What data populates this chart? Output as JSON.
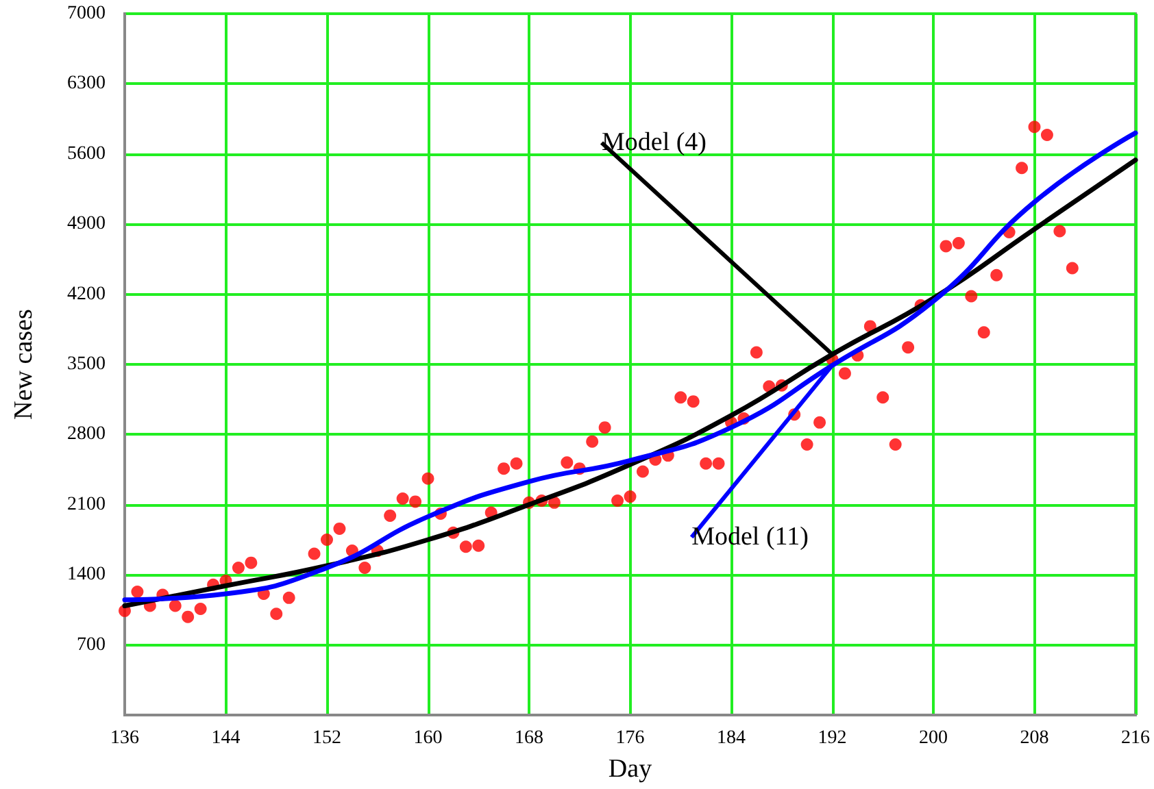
{
  "chart_data": {
    "type": "scatter",
    "xlabel": "Day",
    "ylabel": "New cases",
    "xlim": [
      136,
      216
    ],
    "xticks": [
      136,
      144,
      152,
      160,
      168,
      176,
      184,
      192,
      200,
      208,
      216
    ],
    "ylim": [
      0,
      7000
    ],
    "yticks": [
      700,
      1400,
      2100,
      2800,
      3500,
      4200,
      4900,
      5600,
      6300,
      7000
    ],
    "grid": true,
    "legend": false,
    "series": [
      {
        "color": "#ff0000",
        "marker": "circle",
        "x": [
          136,
          137,
          138,
          139,
          140,
          141,
          142,
          143,
          144,
          145,
          146,
          147,
          148,
          149,
          151,
          152,
          153,
          154,
          155,
          156,
          157,
          158,
          159,
          160,
          161,
          162,
          163,
          164,
          165,
          166,
          167,
          168,
          169,
          170,
          171,
          172,
          173,
          174,
          175,
          176,
          177,
          178,
          179,
          180,
          181,
          182,
          183,
          184,
          185,
          186,
          187,
          188,
          189,
          190,
          191,
          192,
          193,
          194,
          195,
          196,
          197,
          198,
          199,
          201,
          202,
          203,
          204,
          205,
          206,
          207,
          208,
          209,
          210,
          211
        ],
        "values": [
          1040,
          1230,
          1090,
          1200,
          1090,
          980,
          1060,
          1300,
          1340,
          1470,
          1520,
          1210,
          1010,
          1170,
          1610,
          1750,
          1860,
          1640,
          1470,
          1640,
          1990,
          2160,
          2130,
          2360,
          2010,
          1820,
          1680,
          1690,
          2020,
          2460,
          2510,
          2120,
          2140,
          2120,
          2520,
          2460,
          2730,
          2870,
          2140,
          2180,
          2430,
          2550,
          2590,
          3170,
          3130,
          2510,
          2510,
          2920,
          2960,
          3620,
          3280,
          3290,
          3000,
          2700,
          2920,
          3550,
          3410,
          3590,
          3880,
          3170,
          2700,
          3670,
          4090,
          4680,
          4710,
          4180,
          3820,
          4390,
          4820,
          5460,
          5870,
          5790,
          4830,
          4460
        ]
      },
      {
        "type": "line",
        "name": "Model (4)",
        "color": "#000000",
        "marker": "none",
        "x": [
          136,
          144,
          152,
          160,
          168,
          176,
          184,
          192,
          200,
          208,
          216
        ],
        "values": [
          1090,
          1290,
          1490,
          1750,
          2100,
          2500,
          2990,
          3600,
          4160,
          4850,
          5540
        ]
      },
      {
        "type": "line",
        "name": "Model (11)",
        "color": "#0000ff",
        "marker": "none",
        "x": [
          136,
          144,
          152,
          160,
          168,
          176,
          184,
          192,
          200,
          208,
          216
        ],
        "values": [
          1150,
          1210,
          1470,
          1980,
          2330,
          2540,
          2870,
          3490,
          4130,
          5120,
          5810
        ]
      }
    ]
  }
}
